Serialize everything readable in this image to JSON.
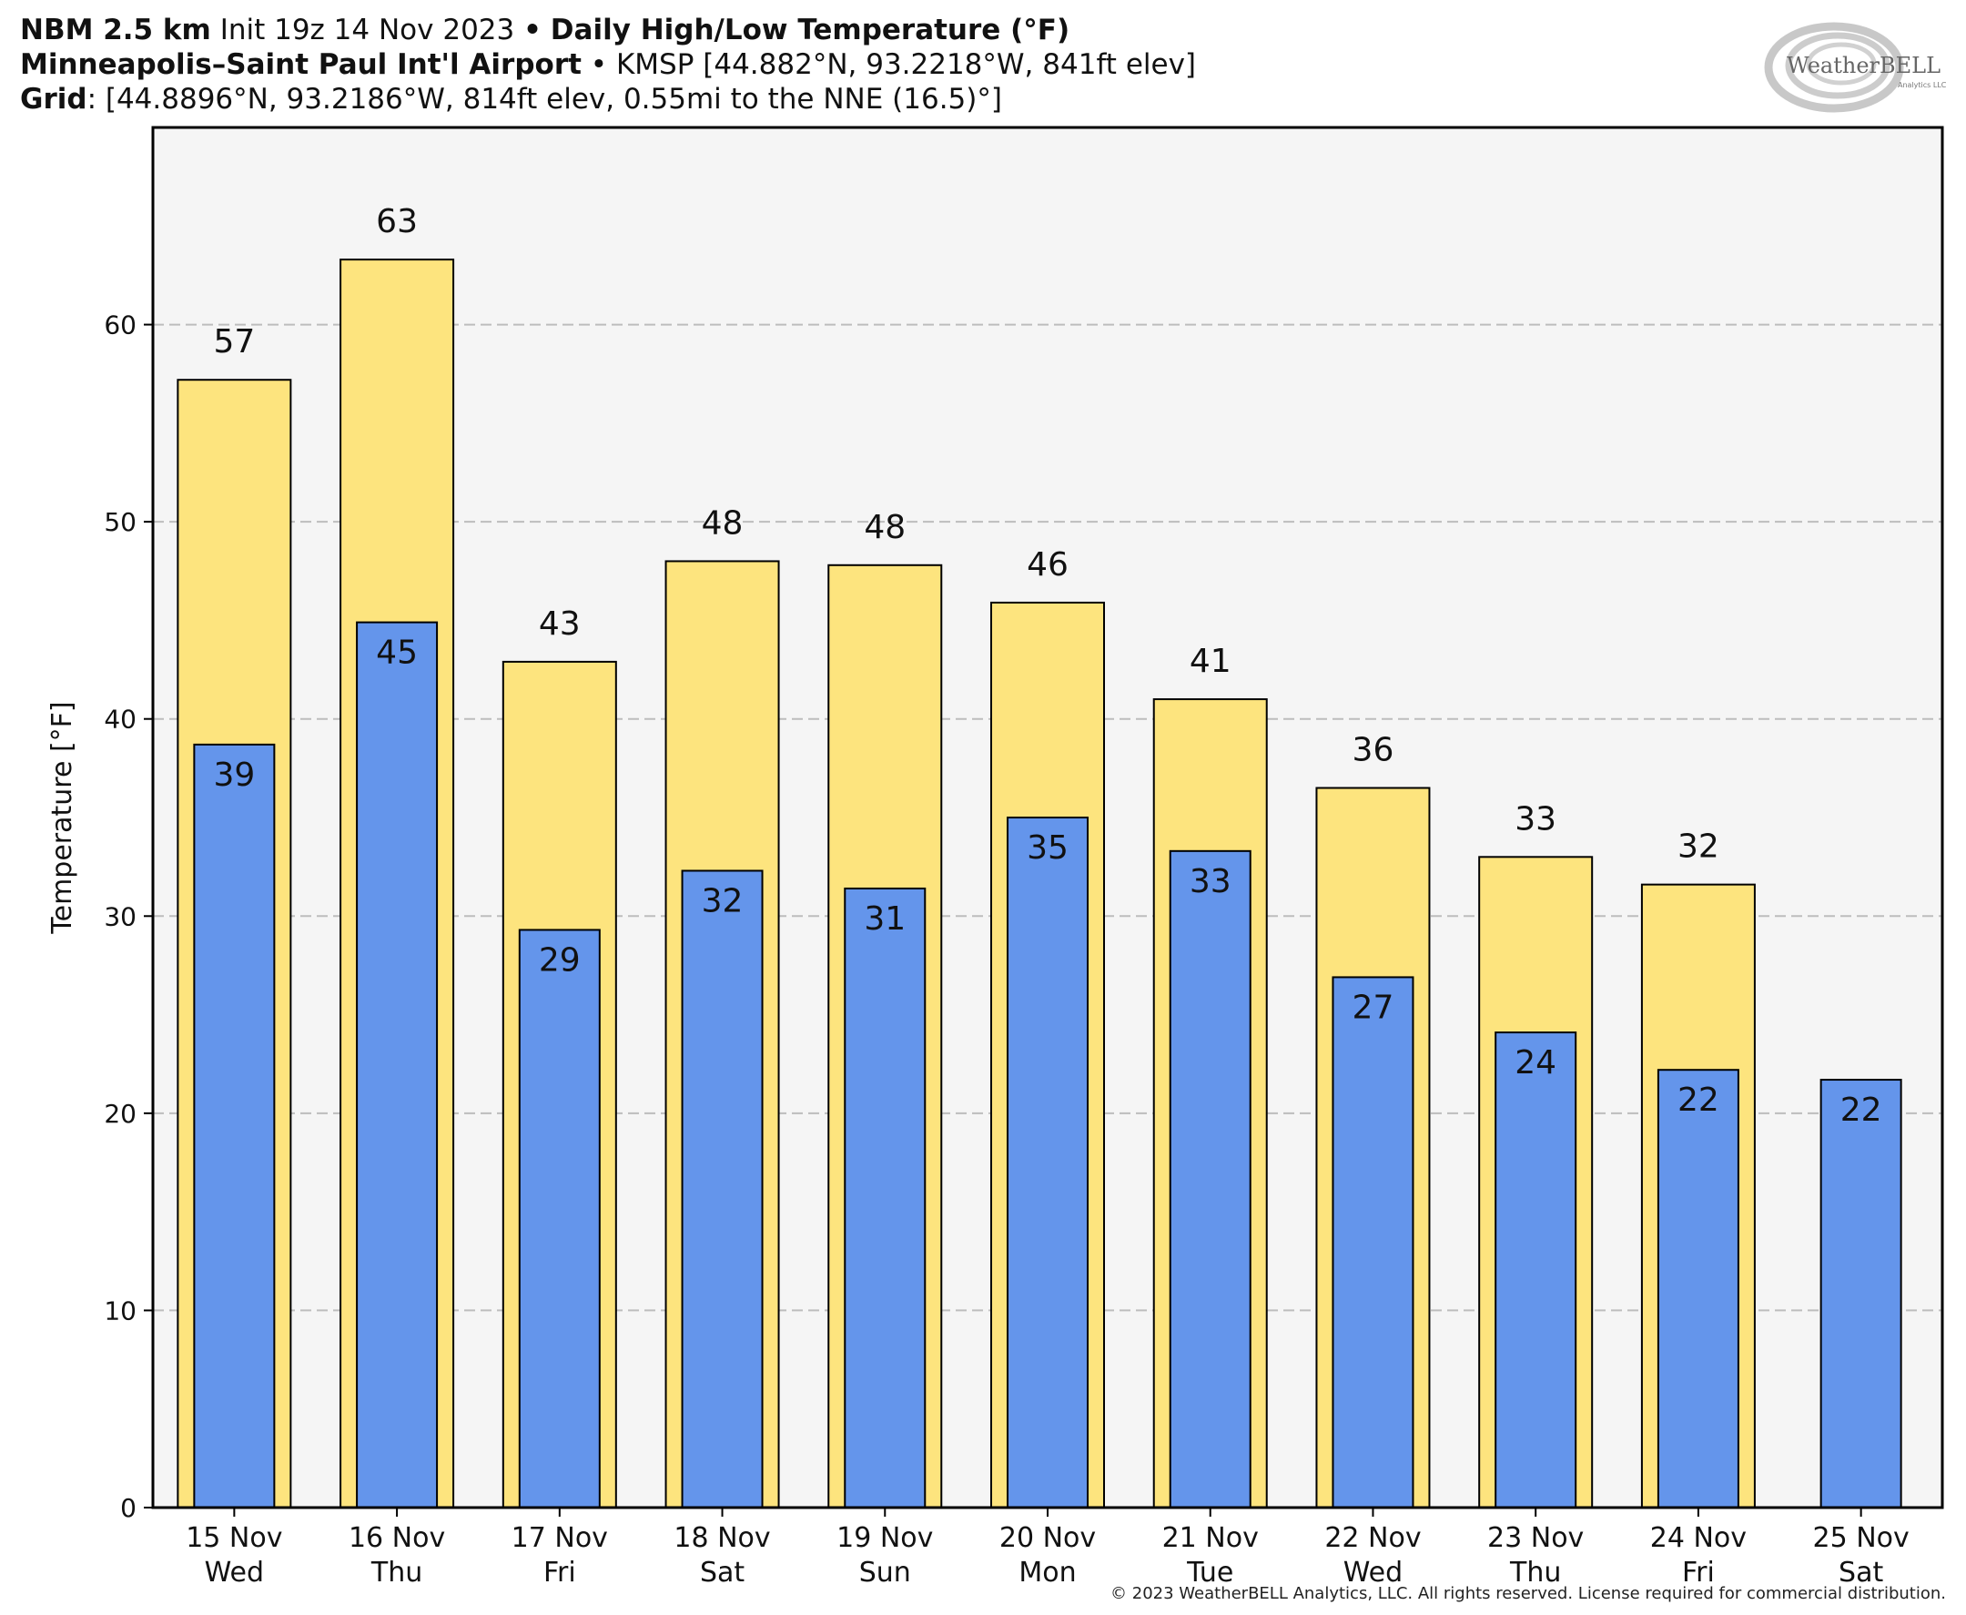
{
  "header": {
    "line1": {
      "model": "NBM 2.5 km",
      "init": "Init 19z 14 Nov 2023",
      "sep": "•",
      "product": "Daily High/Low Temperature (°F)"
    },
    "line2": {
      "station_name": "Minneapolis–Saint Paul Int'l Airport",
      "sep": "•",
      "station_info": "KMSP [44.882°N, 93.2218°W, 841ft elev]"
    },
    "line3": {
      "grid_label": "Grid",
      "grid_info": ": [44.8896°N, 93.2186°W, 814ft elev, 0.55mi to the NNE (16.5)°]"
    }
  },
  "logo": {
    "text": "WeatherBELL",
    "subtext": "Analytics LLC"
  },
  "chart_data": {
    "type": "bar",
    "categories": [
      [
        "15 Nov",
        "Wed"
      ],
      [
        "16 Nov",
        "Thu"
      ],
      [
        "17 Nov",
        "Fri"
      ],
      [
        "18 Nov",
        "Sat"
      ],
      [
        "19 Nov",
        "Sun"
      ],
      [
        "20 Nov",
        "Mon"
      ],
      [
        "21 Nov",
        "Tue"
      ],
      [
        "22 Nov",
        "Wed"
      ],
      [
        "23 Nov",
        "Thu"
      ],
      [
        "24 Nov",
        "Fri"
      ],
      [
        "25 Nov",
        "Sat"
      ]
    ],
    "series": [
      {
        "values": [
          57.2,
          63.3,
          42.9,
          48.0,
          47.8,
          45.9,
          41.0,
          36.5,
          33.0,
          31.6,
          null
        ],
        "labels": [
          "57",
          "63",
          "43",
          "48",
          "48",
          "46",
          "41",
          "36",
          "33",
          "32",
          ""
        ],
        "color": "#fde47e"
      },
      {
        "values": [
          38.7,
          44.9,
          29.3,
          32.3,
          31.4,
          35.0,
          33.3,
          26.9,
          24.1,
          22.2,
          21.7
        ],
        "labels": [
          "39",
          "45",
          "29",
          "32",
          "31",
          "35",
          "33",
          "27",
          "24",
          "22",
          "22"
        ],
        "color": "#6495eb"
      }
    ],
    "ylabel": "Temperature [°F]",
    "ylim": [
      0,
      70
    ],
    "yticks": [
      0,
      10,
      20,
      30,
      40,
      50,
      60
    ],
    "grid": true,
    "plot_background": "#f5f5f5"
  },
  "footer": {
    "copyright": "© 2023 WeatherBELL Analytics, LLC. All rights reserved. License required for commercial distribution."
  }
}
